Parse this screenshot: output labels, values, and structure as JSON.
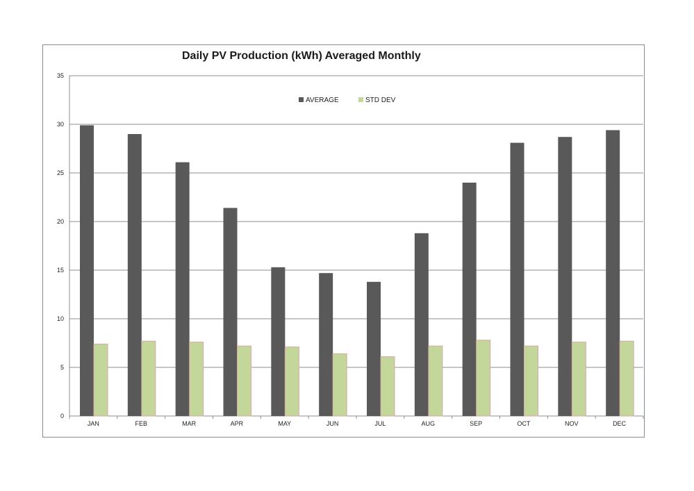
{
  "chart_data": {
    "type": "bar",
    "title": "Daily PV Production (kWh) Averaged Monthly",
    "xlabel": "",
    "ylabel": "",
    "ylim": [
      0,
      35
    ],
    "yticks": [
      0,
      5,
      10,
      15,
      20,
      25,
      30,
      35
    ],
    "grid": true,
    "legend_position": "top-center",
    "categories": [
      "JAN",
      "FEB",
      "MAR",
      "APR",
      "MAY",
      "JUN",
      "JUL",
      "AUG",
      "SEP",
      "OCT",
      "NOV",
      "DEC"
    ],
    "series": [
      {
        "name": "AVERAGE",
        "color": "#595959",
        "values": [
          29.9,
          29.0,
          26.1,
          21.4,
          15.3,
          14.7,
          13.8,
          18.8,
          24.0,
          28.1,
          28.7,
          29.4
        ]
      },
      {
        "name": "STD DEV",
        "color": "#c4d79b",
        "values": [
          7.4,
          7.7,
          7.6,
          7.2,
          7.1,
          6.4,
          6.1,
          7.2,
          7.8,
          7.2,
          7.6,
          7.7
        ]
      }
    ]
  }
}
